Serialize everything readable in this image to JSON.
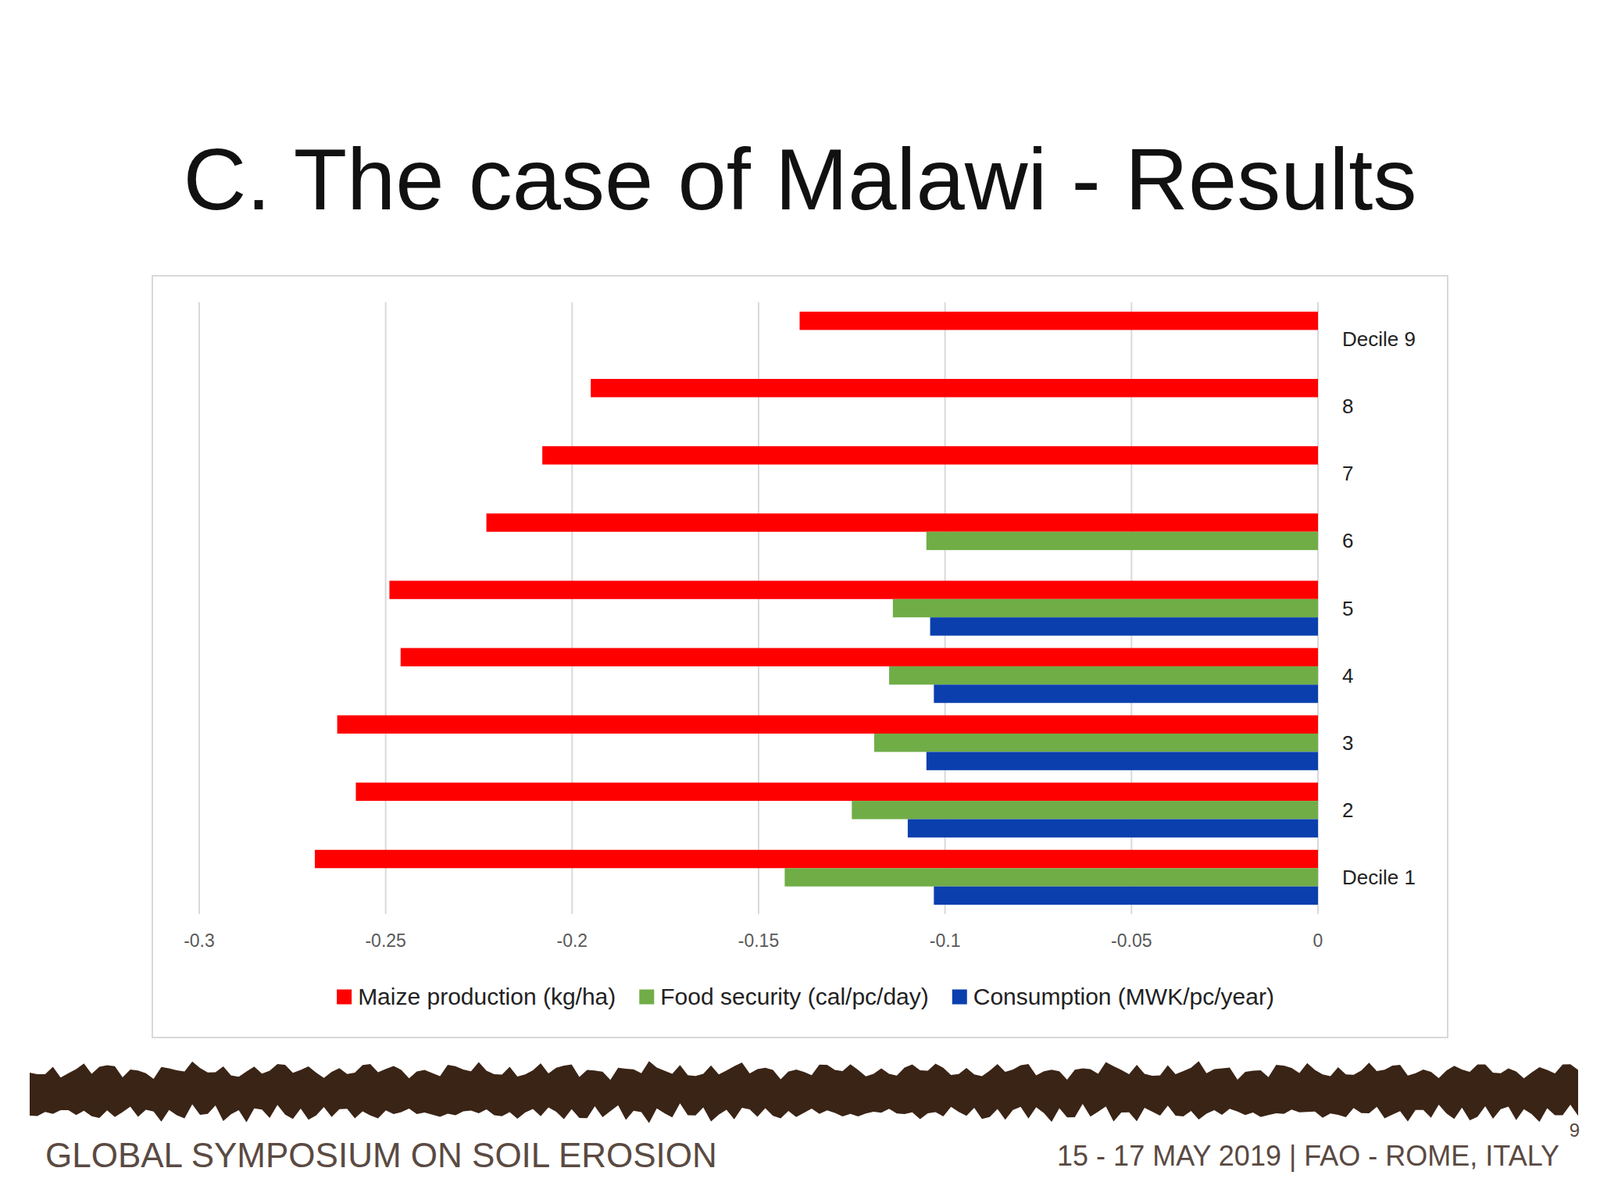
{
  "chart_data": {
    "type": "bar",
    "orientation": "horizontal",
    "title": "C. The case of Malawi - Results",
    "categories": [
      "Decile 1",
      "2",
      "3",
      "4",
      "5",
      "6",
      "7",
      "8",
      "Decile 9"
    ],
    "series": [
      {
        "name": "Maize production (kg/ha)",
        "color": "#ff0000",
        "values": [
          -0.269,
          -0.258,
          -0.263,
          -0.246,
          -0.249,
          -0.223,
          -0.208,
          -0.195,
          -0.139
        ]
      },
      {
        "name": "Food security (cal/pc/day)",
        "color": "#70ad47",
        "values": [
          -0.143,
          -0.125,
          -0.119,
          -0.115,
          -0.114,
          -0.105,
          null,
          null,
          null
        ]
      },
      {
        "name": "Consumption (MWK/pc/year)",
        "color": "#0b3fae",
        "values": [
          -0.103,
          -0.11,
          -0.105,
          -0.103,
          -0.104,
          null,
          null,
          null,
          null
        ]
      }
    ],
    "xlim": [
      -0.3,
      0
    ],
    "xticks": [
      -0.3,
      -0.25,
      -0.2,
      -0.15,
      -0.1,
      -0.05,
      0
    ],
    "grid": true,
    "legend": "bottom"
  },
  "footer": {
    "event": "GLOBAL SYMPOSIUM ON SOIL EROSION",
    "details": "15 - 17 MAY 2019 | FAO - ROME, ITALY",
    "page": "9"
  }
}
